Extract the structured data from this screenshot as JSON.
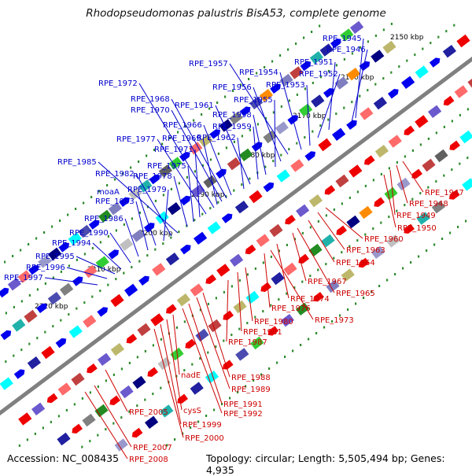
{
  "title": "Rhodopseudomonas palustris BisA53, complete genome",
  "accession": "Accession: NC_008435",
  "summary": "Topology: circular; Length: 5,505,494 bp; Genes: 4,935",
  "colors": {
    "backbone": "#808080",
    "tick": "#2e8b2e",
    "label_top": "#0000cc",
    "label_bottom": "#cc0000",
    "forward_strand": "#0000ee",
    "reverse_strand": "#ee0000",
    "cog_palette": [
      "#000080",
      "#2020a0",
      "#4b4bb0",
      "#6a5acd",
      "#7f7fbf",
      "#9999cc",
      "#20b2aa",
      "#00ffff",
      "#32cd32",
      "#228b22",
      "#bdb76b",
      "#c0c0c0",
      "#808080",
      "#606060",
      "#ff8c00",
      "#ff6a6a",
      "#c04040"
    ]
  },
  "scale_labels": [
    "2150 kbp",
    "2160 kbp",
    "2170 kbp",
    "2180 kbp",
    "2190 kbp",
    "2200 kbp",
    "2210 kbp",
    "2220 kbp"
  ],
  "genes_top": [
    "RPE_1945",
    "RPE_1946",
    "RPE_1951",
    "RPE_1952",
    "RPE_1953",
    "RPE_1954",
    "RPE_1957",
    "RPE_1956",
    "RPE_1955",
    "RPE_1958",
    "RPE_1959",
    "RPE_1961",
    "RPE_1962",
    "RPE_1966",
    "RPE_1968",
    "RPE_1970",
    "RPE_1969",
    "RPE_1972",
    "RPE_1977",
    "RPE_1971",
    "RPE_1975",
    "RPE_1978",
    "RPE_1985",
    "RPE_1982",
    "RPE_1979",
    "moaA",
    "RPE_1983",
    "RPE_1986",
    "RPE_1990",
    "RPE_1994",
    "RPE_1995",
    "RPE_1996",
    "RPE_1997"
  ],
  "genes_bottom": [
    "RPE_1947",
    "RPE_1948",
    "RPE_1949",
    "RPE_1950",
    "RPE_1960",
    "RPE_1963",
    "RPE_1964",
    "RPE_1965",
    "RPE_1967",
    "RPE_1974",
    "RPE_1973",
    "RPE_1976",
    "RPE_1980",
    "RPE_1981",
    "RPE_1987",
    "RPE_1988",
    "RPE_1989",
    "RPE_1991",
    "RPE_1992",
    "nadE",
    "cysS",
    "RPE_1999",
    "RPE_2000",
    "RPE_2005",
    "RPE_2007",
    "RPE_2008"
  ]
}
